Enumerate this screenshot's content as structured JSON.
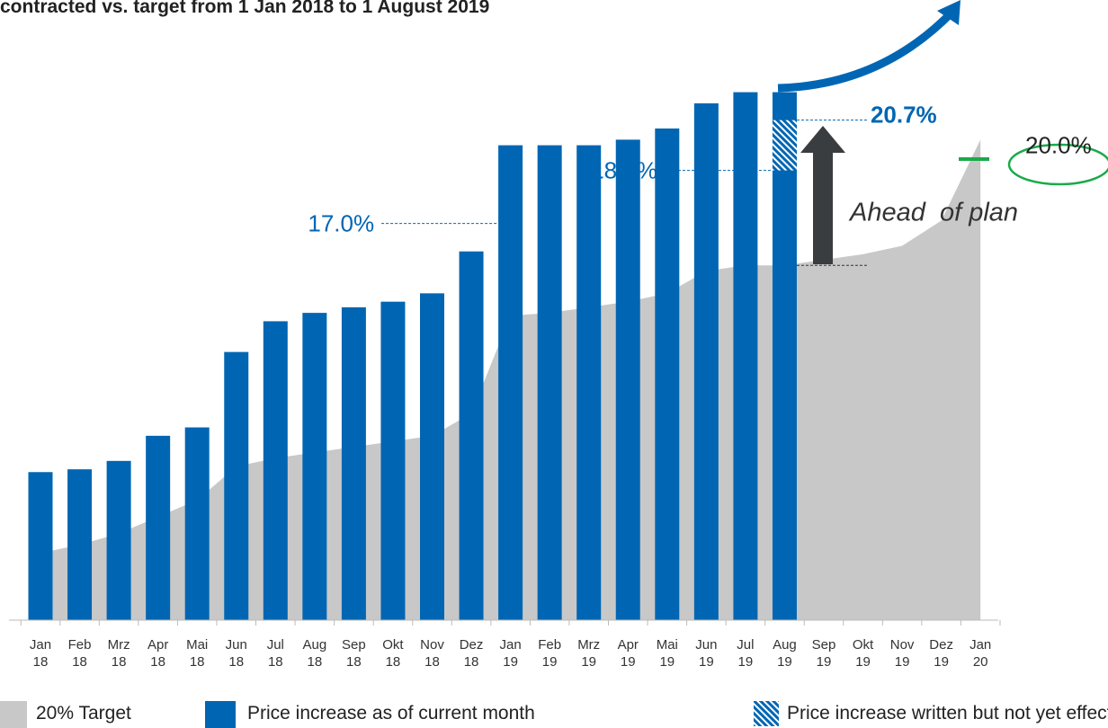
{
  "chart_data": {
    "type": "bar",
    "title": "contracted vs. target from 1 Jan 2018 to 1 August 2019",
    "categories": [
      "Jan\n18",
      "Feb\n18",
      "Mrz\n18",
      "Apr\n18",
      "Mai\n18",
      "Jun\n18",
      "Jul\n18",
      "Aug\n18",
      "Sep\n18",
      "Okt\n18",
      "Nov\n18",
      "Dez\n18",
      "Jan\n19",
      "Feb\n19",
      "Mrz\n19",
      "Apr\n19",
      "Mai\n19",
      "Jun\n19",
      "Jul\n19",
      "Aug\n19",
      "Sep\n19",
      "Okt\n19",
      "Nov\n19",
      "Dez\n19",
      "Jan\n20"
    ],
    "ylim": [
      2.8,
      25.0
    ],
    "series": [
      {
        "name": "20% Target",
        "color": "#c8c8c8",
        "kind": "area",
        "values": [
          5.2,
          5.5,
          5.9,
          6.5,
          7.1,
          8.3,
          8.6,
          8.8,
          9.0,
          9.2,
          9.4,
          10.2,
          13.7,
          13.8,
          14.0,
          14.2,
          14.5,
          15.3,
          15.5,
          15.5,
          15.7,
          15.9,
          16.2,
          17.1,
          20.0
        ],
        "value_labels": [
          null,
          null,
          null,
          null,
          null,
          null,
          null,
          null,
          null,
          null,
          null,
          null,
          null,
          null,
          null,
          null,
          null,
          null,
          null,
          null,
          null,
          null,
          null,
          null,
          "20.0%"
        ]
      },
      {
        "name": "Price increase as of current month",
        "color": "#0066b3",
        "kind": "bar",
        "values": [
          5.3,
          5.4,
          5.7,
          6.6,
          6.9,
          9.6,
          10.7,
          11.0,
          11.2,
          11.4,
          11.7,
          13.2,
          17.0,
          17.0,
          17.0,
          17.2,
          17.6,
          18.5,
          18.9,
          18.9,
          null,
          null,
          null,
          null,
          null
        ],
        "value_labels": [
          null,
          null,
          null,
          null,
          null,
          null,
          null,
          null,
          null,
          null,
          null,
          null,
          "17.0%",
          null,
          null,
          null,
          null,
          null,
          null,
          "18.9%",
          null,
          null,
          null,
          null,
          null
        ]
      },
      {
        "name": "Price increase written but not yet effective",
        "color": "#0066b3",
        "kind": "hatched",
        "values": [
          null,
          null,
          null,
          null,
          null,
          null,
          null,
          null,
          null,
          null,
          null,
          null,
          null,
          null,
          null,
          null,
          null,
          null,
          null,
          1.8,
          null,
          null,
          null,
          null,
          null
        ]
      }
    ],
    "annotations": [
      {
        "text": "20.7%",
        "value": 20.7
      },
      {
        "text": "Ahead  of plan"
      }
    ]
  }
}
